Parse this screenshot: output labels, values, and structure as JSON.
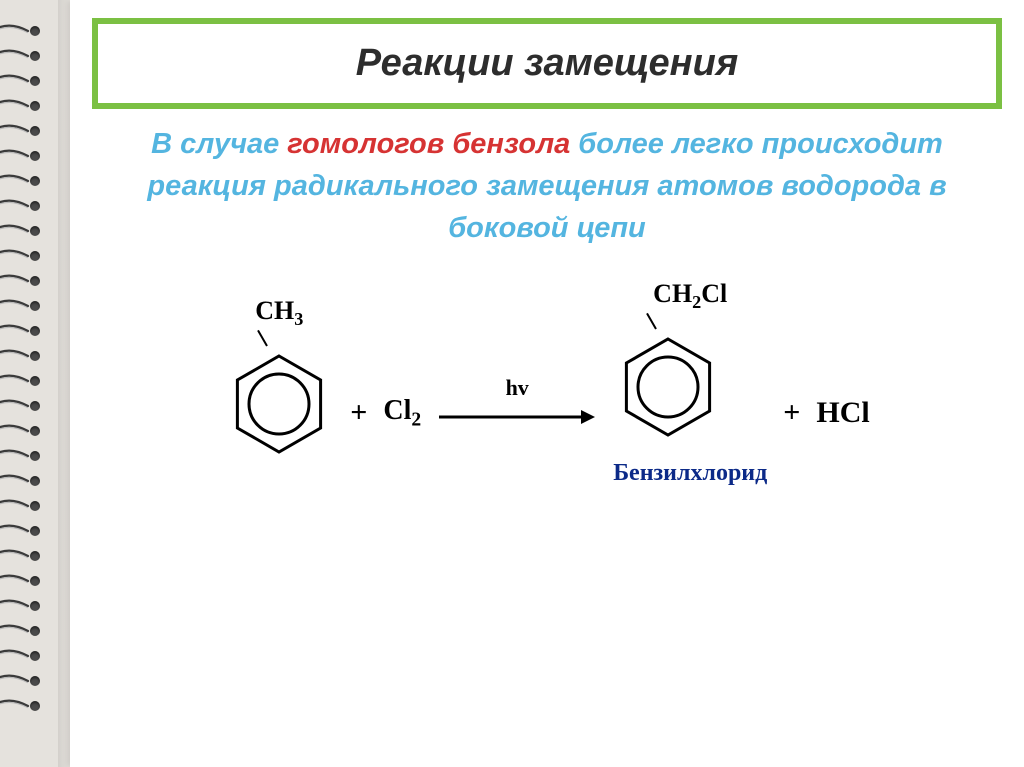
{
  "slide": {
    "title": "Реакции замещения",
    "title_band_border_color": "#7bc043",
    "title_band_bg": "#ffffff",
    "sub_prefix": "В случае ",
    "sub_accent": "гомологов бензола",
    "sub_rest1": " более легко происходит реакция радикального замещения атомов водорода в боковой цепи",
    "colors": {
      "accent": "#d63333",
      "primary": "#54b5e0",
      "ring_stroke": "#000000",
      "bg_page": "#e8e5e0",
      "bg_notebook": "#ffffff"
    }
  },
  "spiral": {
    "count": 28,
    "spacing": 25,
    "start": 24
  },
  "reaction": {
    "reactant": {
      "substituent": "CH",
      "substituent_sub": "3"
    },
    "plus": "+",
    "reagent": "Cl",
    "reagent_sub": "2",
    "arrow_label": "hv",
    "arrow_length": 160,
    "product": {
      "substituent": "CH",
      "substituent_sub": "2",
      "substituent_tail": "Cl",
      "label": "Бензилхлорид",
      "label_color": "#0c2a88"
    },
    "byproduct": "HCl",
    "hex_radius": 48,
    "circle_radius": 30,
    "stroke_width": 3
  }
}
